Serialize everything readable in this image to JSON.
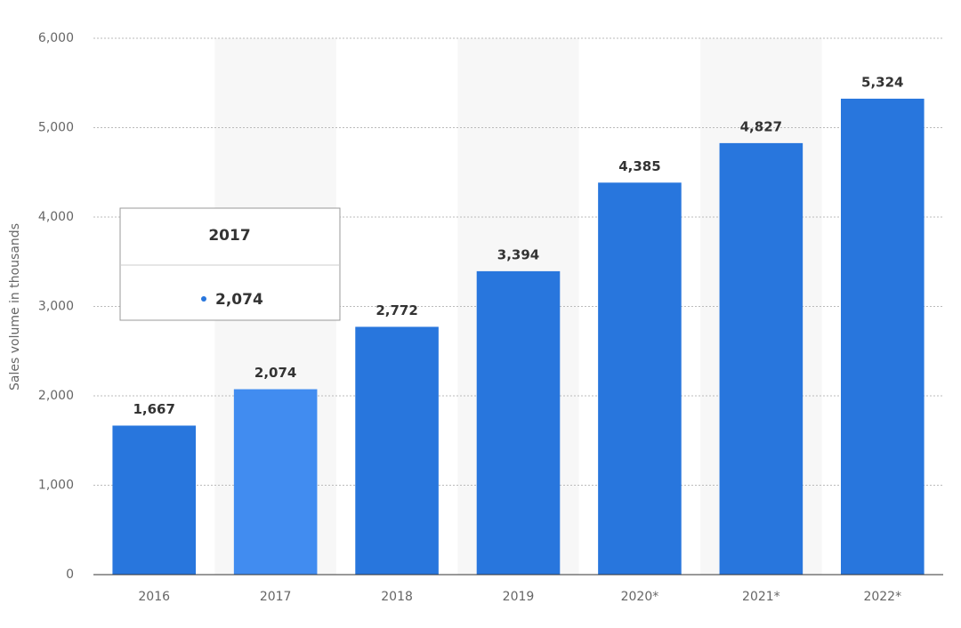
{
  "chart_data": {
    "type": "bar",
    "y_label": "Sales volume in thousands",
    "categories": [
      "2016",
      "2017",
      "2018",
      "2019",
      "2020*",
      "2021*",
      "2022*"
    ],
    "values": [
      1667,
      2074,
      2772,
      3394,
      4385,
      4827,
      5324
    ],
    "value_labels": [
      "1,667",
      "2,074",
      "2,772",
      "3,394",
      "4,385",
      "4,827",
      "5,324"
    ],
    "colors": [
      "#2876dd",
      "#418cf0",
      "#2876dd",
      "#2876dd",
      "#2876dd",
      "#2876dd",
      "#2876dd"
    ],
    "ylim": [
      0,
      6000
    ],
    "yticks": [
      0,
      {
        "value": 1000,
        "label": "1,000"
      },
      {
        "value": 2000,
        "label": "2,000"
      },
      {
        "value": 3000,
        "label": "3,000"
      },
      {
        "value": 4000,
        "label": "4,000"
      },
      {
        "value": 5000,
        "label": "5,000"
      },
      {
        "value": 6000,
        "label": "6,000"
      }
    ],
    "grid": true,
    "band_shading": true
  }
}
